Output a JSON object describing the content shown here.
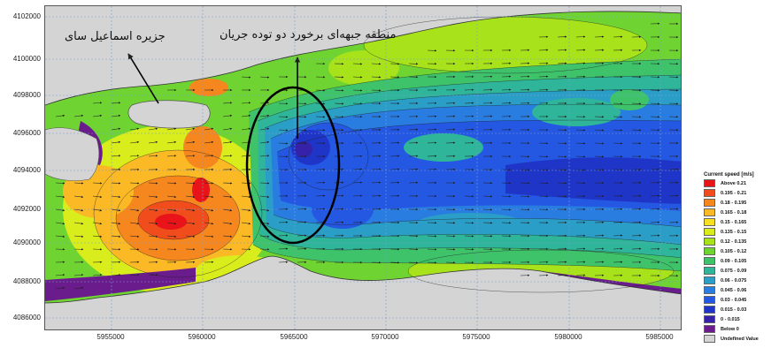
{
  "map": {
    "y_ticks": [
      "4102000",
      "4100000",
      "4098000",
      "4096000",
      "4094000",
      "4092000",
      "4090000",
      "4088000",
      "4086000"
    ],
    "x_ticks": [
      "5955000",
      "5960000",
      "5965000",
      "5970000",
      "5975000",
      "5980000",
      "5985000"
    ],
    "annotations": {
      "island_label": "جزیره اسماعیل سای",
      "front_label": "منطقه جبهه‌ای برخورد دو توده جریان"
    },
    "colors": {
      "land": "#d4d4d4",
      "grid": "#7aa0d0"
    }
  },
  "legend": {
    "title": "Current speed [m/s]",
    "items": [
      {
        "label": "Above   0.21",
        "color": "#e8141a"
      },
      {
        "label": "0.195 -  0.21",
        "color": "#f04c1c"
      },
      {
        "label": "0.18 -  0.195",
        "color": "#f6861e"
      },
      {
        "label": "0.165 -  0.18",
        "color": "#fab925"
      },
      {
        "label": "0.15 -  0.165",
        "color": "#f6e020"
      },
      {
        "label": "0.135 -  0.15",
        "color": "#d9ed1c"
      },
      {
        "label": "0.12 -  0.135",
        "color": "#a8e21a"
      },
      {
        "label": "0.105 -  0.12",
        "color": "#6fd432"
      },
      {
        "label": "0.09 -  0.105",
        "color": "#3fc36a"
      },
      {
        "label": "0.075 -  0.09",
        "color": "#2fb59a"
      },
      {
        "label": "0.06 -  0.075",
        "color": "#2a9ec6"
      },
      {
        "label": "0.045 -  0.06",
        "color": "#2a7de0"
      },
      {
        "label": "0.03 -  0.045",
        "color": "#2457e2"
      },
      {
        "label": "0.015 -  0.03",
        "color": "#1f35c8"
      },
      {
        "label": "0 -  0.015",
        "color": "#3522a8"
      },
      {
        "label": "Below     0",
        "color": "#6a1c8c"
      },
      {
        "label": "Undefined Value",
        "color": "#d4d4d4"
      }
    ]
  }
}
